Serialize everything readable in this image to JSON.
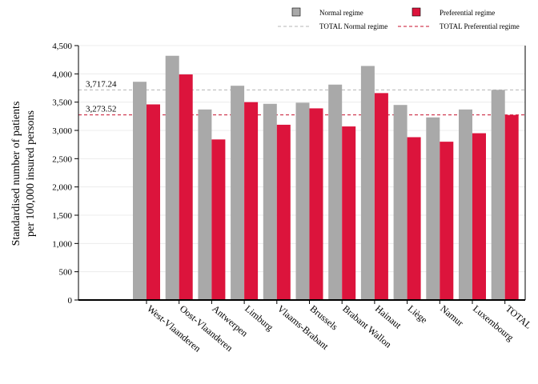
{
  "chart_data": {
    "type": "bar",
    "title": "",
    "xlabel": "",
    "ylabel_line1": "Standardised number of patients",
    "ylabel_line2": "per 100,000 insured persons",
    "ylim": [
      0,
      4500
    ],
    "yticks": [
      0,
      500,
      1000,
      1500,
      2000,
      2500,
      3000,
      3500,
      4000,
      4500
    ],
    "ytick_labels": [
      "0",
      "500",
      "1,000",
      "1,500",
      "2,000",
      "2,500",
      "3,000",
      "3,500",
      "4,000",
      "4,500"
    ],
    "grid": "horizontal",
    "legend_position": "top-right",
    "categories": [
      "West-Vlaanderen",
      "Oost-Vlaanderen",
      "Antwerpen",
      "Limburg",
      "Vlaams-Brabant",
      "Brussels",
      "Brabant Wallon",
      "Hainaut",
      "Liège",
      "Namur",
      "Luxembourg",
      "TOTAL"
    ],
    "series": [
      {
        "name": "Normal regime",
        "color": "#a9a9a9",
        "values": [
          3860,
          4320,
          3370,
          3790,
          3470,
          3490,
          3810,
          4140,
          3450,
          3230,
          3370,
          3717.24
        ]
      },
      {
        "name": "Preferential regime",
        "color": "#dc143c",
        "values": [
          3460,
          3990,
          2840,
          3500,
          3100,
          3390,
          3070,
          3660,
          2880,
          2800,
          2950,
          3273.52
        ]
      }
    ],
    "reference_lines": [
      {
        "name": "TOTAL Normal regime",
        "value": 3717.24,
        "label": "3,717.24",
        "color": "#b4b4b4"
      },
      {
        "name": "TOTAL Preferential regime",
        "value": 3273.52,
        "label": "3,273.52",
        "color": "#c8102e"
      }
    ]
  }
}
